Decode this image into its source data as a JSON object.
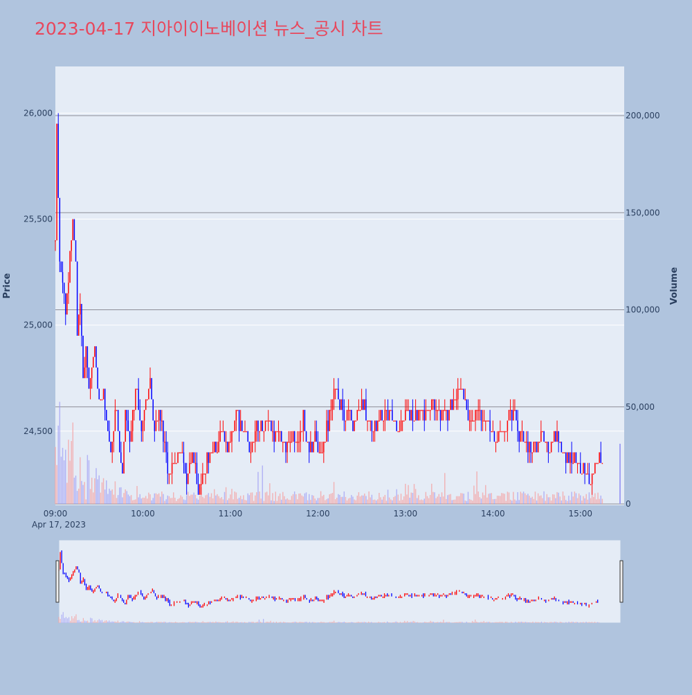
{
  "chart_data": {
    "type": "candlestick",
    "title": "2023-04-17 지아이이노베이션 뉴스_공시 차트",
    "ylabel": "Price",
    "y2label": "Volume",
    "x_date_label": "Apr 17, 2023",
    "xticks": [
      "09:00",
      "10:00",
      "11:00",
      "12:00",
      "13:00",
      "14:00",
      "15:00"
    ],
    "yticks": [
      "24,500",
      "25,000",
      "25,500",
      "26,000"
    ],
    "y2ticks": [
      "0",
      "50,000",
      "100,000",
      "150,000",
      "200,000"
    ],
    "ylim": [
      24150,
      26220
    ],
    "y2lim": [
      0,
      200000
    ],
    "xrange": [
      "09:00",
      "15:30"
    ],
    "close_path": [
      [
        "09:00",
        25400
      ],
      [
        "09:01",
        26000
      ],
      [
        "09:02",
        25600
      ],
      [
        "09:03",
        25300
      ],
      [
        "09:05",
        25200
      ],
      [
        "09:07",
        25100
      ],
      [
        "09:09",
        25200
      ],
      [
        "09:11",
        25400
      ],
      [
        "09:12",
        25500
      ],
      [
        "09:14",
        25300
      ],
      [
        "09:15",
        25000
      ],
      [
        "09:17",
        25100
      ],
      [
        "09:19",
        24800
      ],
      [
        "09:21",
        24900
      ],
      [
        "09:23",
        24700
      ],
      [
        "09:27",
        24900
      ],
      [
        "09:30",
        24600
      ],
      [
        "09:33",
        24700
      ],
      [
        "09:36",
        24500
      ],
      [
        "09:38",
        24400
      ],
      [
        "09:41",
        24600
      ],
      [
        "09:43",
        24500
      ],
      [
        "09:46",
        24300
      ],
      [
        "09:48",
        24600
      ],
      [
        "09:51",
        24450
      ],
      [
        "09:55",
        24700
      ],
      [
        "09:59",
        24500
      ],
      [
        "10:01",
        24600
      ],
      [
        "10:05",
        24750
      ],
      [
        "10:08",
        24500
      ],
      [
        "10:11",
        24600
      ],
      [
        "10:15",
        24450
      ],
      [
        "10:18",
        24300
      ],
      [
        "10:22",
        24350
      ],
      [
        "10:26",
        24400
      ],
      [
        "10:30",
        24300
      ],
      [
        "10:34",
        24400
      ],
      [
        "10:38",
        24200
      ],
      [
        "10:42",
        24300
      ],
      [
        "10:46",
        24400
      ],
      [
        "10:50",
        24400
      ],
      [
        "10:54",
        24500
      ],
      [
        "10:58",
        24400
      ],
      [
        "11:01",
        24500
      ],
      [
        "11:04",
        24600
      ],
      [
        "11:07",
        24500
      ],
      [
        "11:10",
        24500
      ],
      [
        "11:14",
        24400
      ],
      [
        "11:18",
        24550
      ],
      [
        "11:22",
        24500
      ],
      [
        "11:26",
        24550
      ],
      [
        "11:30",
        24450
      ],
      [
        "11:34",
        24500
      ],
      [
        "11:38",
        24400
      ],
      [
        "11:42",
        24500
      ],
      [
        "11:46",
        24450
      ],
      [
        "11:50",
        24550
      ],
      [
        "11:54",
        24400
      ],
      [
        "11:58",
        24450
      ],
      [
        "12:02",
        24400
      ],
      [
        "12:06",
        24500
      ],
      [
        "12:09",
        24600
      ],
      [
        "12:12",
        24700
      ],
      [
        "12:15",
        24650
      ],
      [
        "12:18",
        24550
      ],
      [
        "12:21",
        24600
      ],
      [
        "12:24",
        24500
      ],
      [
        "12:27",
        24600
      ],
      [
        "12:30",
        24650
      ],
      [
        "12:34",
        24550
      ],
      [
        "12:38",
        24500
      ],
      [
        "12:42",
        24550
      ],
      [
        "12:46",
        24600
      ],
      [
        "12:50",
        24550
      ],
      [
        "12:54",
        24500
      ],
      [
        "12:58",
        24550
      ],
      [
        "13:02",
        24600
      ],
      [
        "13:06",
        24550
      ],
      [
        "13:10",
        24600
      ],
      [
        "13:14",
        24550
      ],
      [
        "13:18",
        24650
      ],
      [
        "13:22",
        24600
      ],
      [
        "13:26",
        24550
      ],
      [
        "13:30",
        24600
      ],
      [
        "13:34",
        24650
      ],
      [
        "13:38",
        24700
      ],
      [
        "13:42",
        24600
      ],
      [
        "13:46",
        24550
      ],
      [
        "13:50",
        24600
      ],
      [
        "13:54",
        24550
      ],
      [
        "13:58",
        24500
      ],
      [
        "14:02",
        24450
      ],
      [
        "14:06",
        24500
      ],
      [
        "14:10",
        24550
      ],
      [
        "14:14",
        24600
      ],
      [
        "14:18",
        24500
      ],
      [
        "14:22",
        24450
      ],
      [
        "14:26",
        24400
      ],
      [
        "14:30",
        24450
      ],
      [
        "14:34",
        24500
      ],
      [
        "14:38",
        24400
      ],
      [
        "14:42",
        24500
      ],
      [
        "14:46",
        24450
      ],
      [
        "14:50",
        24350
      ],
      [
        "14:54",
        24400
      ],
      [
        "14:58",
        24350
      ],
      [
        "15:01",
        24300
      ],
      [
        "15:04",
        24300
      ],
      [
        "15:07",
        24250
      ],
      [
        "15:10",
        24300
      ],
      [
        "15:13",
        24400
      ],
      [
        "15:15",
        24350
      ]
    ]
  }
}
